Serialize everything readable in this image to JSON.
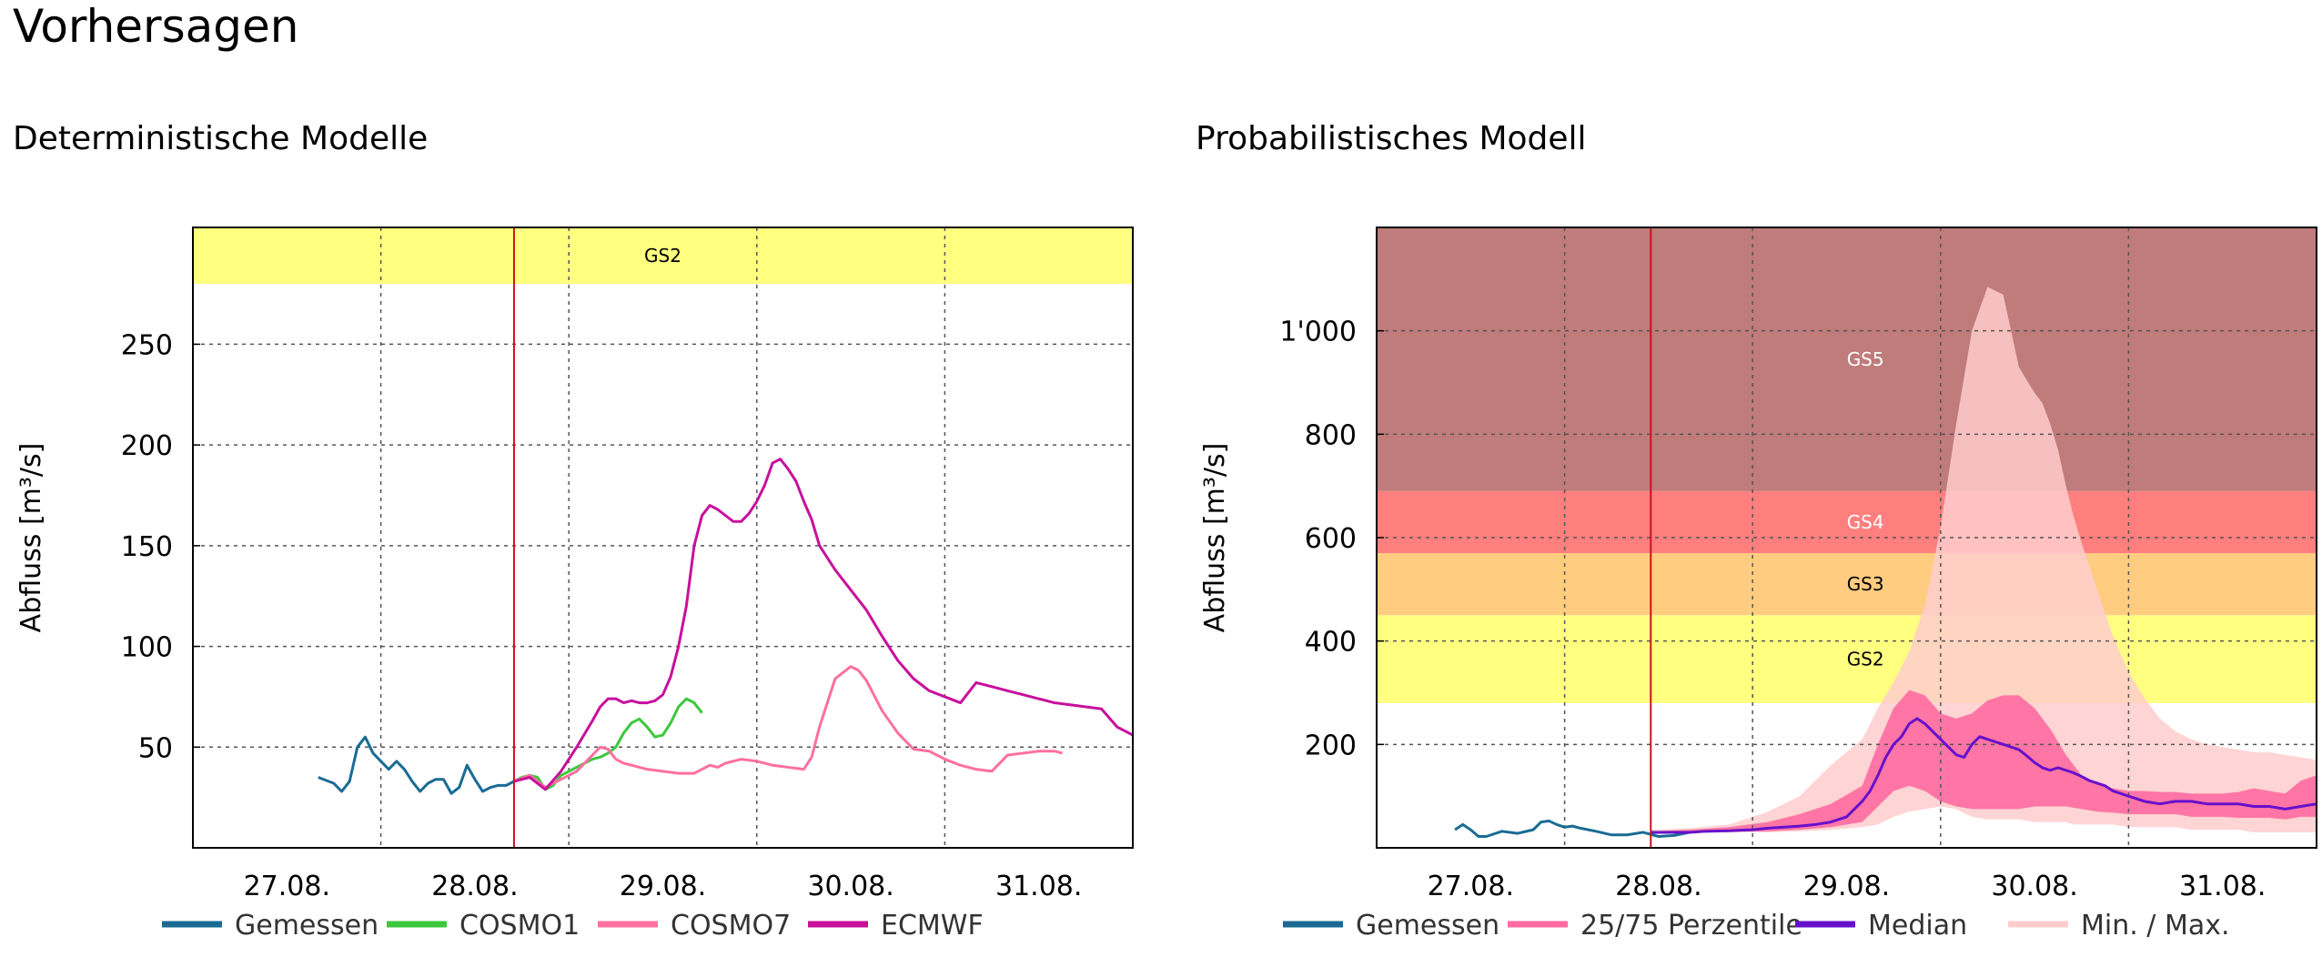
{
  "page": {
    "title": "Vorhersagen"
  },
  "colors": {
    "gemessen": "#1a6b94",
    "cosmo1": "#3cc83c",
    "cosmo7": "#ff6fa0",
    "ecmwf": "#c8109c",
    "vline": "#d0101c",
    "gs2": "#ffff80",
    "gs3": "#ffcc80",
    "gs4": "#ff7f7f",
    "gs5": "#c07b7b",
    "perzentile": "#ff6aa0",
    "median": "#6610cc",
    "minmax": "#ffcccc"
  },
  "chart_data": [
    {
      "type": "line",
      "title": "Deterministische Modelle",
      "ylabel": "Abfluss [m³/s]",
      "x_ticks": [
        "27.08.",
        "28.08.",
        "29.08.",
        "30.08.",
        "31.08."
      ],
      "xlim": [
        0,
        120
      ],
      "ylim": [
        0,
        308
      ],
      "y_ticks": [
        50,
        100,
        150,
        200,
        250
      ],
      "y_tick_labels": [
        "50",
        "100",
        "150",
        "200",
        "250"
      ],
      "grid": true,
      "legend_position": "bottom",
      "forecast_start_hour": 41,
      "bands": [
        {
          "label": "GS2",
          "from": 280,
          "to": 308,
          "color": "#ffff80"
        }
      ],
      "series": [
        {
          "name": "Gemessen",
          "color": "#1a6b94",
          "x": [
            16,
            18,
            19,
            20,
            21,
            22,
            23,
            24,
            25,
            26,
            27,
            28,
            29,
            30,
            31,
            32,
            33,
            34,
            35,
            36,
            37,
            38,
            39,
            40,
            41
          ],
          "y": [
            35,
            32,
            28,
            33,
            50,
            55,
            47,
            43,
            39,
            43,
            39,
            33,
            28,
            32,
            34,
            34,
            27,
            30,
            41,
            34,
            28,
            30,
            31,
            31,
            33
          ]
        },
        {
          "name": "COSMO1",
          "color": "#3cc83c",
          "x": [
            41,
            42,
            43,
            44,
            45,
            46,
            47,
            48,
            49,
            50,
            51,
            52,
            53,
            54,
            55,
            56,
            57,
            58,
            59,
            60,
            61,
            62,
            63,
            64,
            65,
            66,
            67,
            68
          ],
          "y": [
            33,
            35,
            36,
            35,
            29,
            31,
            36,
            38,
            40,
            42,
            44,
            45,
            47,
            50,
            57,
            62,
            64,
            60,
            55,
            56,
            62,
            70,
            74,
            72,
            67,
            null,
            null,
            null
          ]
        },
        {
          "name": "COSMO7",
          "color": "#ff6fa0",
          "x": [
            41,
            43,
            45,
            47,
            49,
            51,
            52,
            53,
            54,
            55,
            56,
            57,
            58,
            60,
            62,
            64,
            66,
            67,
            68,
            70,
            72,
            74,
            76,
            78,
            79,
            80,
            82,
            83,
            84,
            85,
            86,
            88,
            90,
            92,
            94,
            96,
            98,
            100,
            102,
            104,
            106,
            108,
            110,
            111
          ],
          "y": [
            33,
            36,
            30,
            34,
            38,
            46,
            50,
            49,
            44,
            42,
            41,
            40,
            39,
            38,
            37,
            37,
            41,
            40,
            42,
            44,
            43,
            41,
            40,
            39,
            45,
            60,
            84,
            87,
            90,
            88,
            83,
            68,
            57,
            49,
            48,
            44,
            41,
            39,
            38,
            46,
            47,
            48,
            48,
            47
          ]
        },
        {
          "name": "ECMWF",
          "color": "#c8109c",
          "x": [
            41,
            43,
            45,
            47,
            49,
            51,
            52,
            53,
            54,
            55,
            56,
            57,
            58,
            59,
            60,
            61,
            62,
            63,
            64,
            65,
            66,
            67,
            68,
            69,
            70,
            71,
            72,
            73,
            74,
            75,
            76,
            77,
            78,
            79,
            80,
            82,
            84,
            86,
            88,
            90,
            92,
            94,
            96,
            98,
            100,
            102,
            104,
            106,
            107,
            108,
            110,
            112,
            114,
            116,
            118,
            119,
            120
          ],
          "y": [
            33,
            35,
            29,
            38,
            50,
            63,
            70,
            74,
            74,
            72,
            73,
            72,
            72,
            73,
            76,
            85,
            100,
            120,
            150,
            165,
            170,
            168,
            165,
            162,
            162,
            166,
            172,
            180,
            191,
            193,
            188,
            182,
            172,
            163,
            150,
            138,
            128,
            118,
            105,
            93,
            84,
            78,
            75,
            72,
            82,
            80,
            78,
            76,
            75,
            74,
            72,
            71,
            70,
            69,
            60,
            58,
            56
          ]
        }
      ]
    },
    {
      "type": "area",
      "title": "Probabilistisches Modell",
      "ylabel": "Abfluss [m³/s]",
      "x_ticks": [
        "27.08.",
        "28.08.",
        "29.08.",
        "30.08.",
        "31.08."
      ],
      "xlim": [
        0,
        120
      ],
      "ylim": [
        0,
        1200
      ],
      "y_ticks": [
        200,
        400,
        600,
        800,
        1000
      ],
      "y_tick_labels": [
        "200",
        "400",
        "600",
        "800",
        "1'000"
      ],
      "grid": true,
      "legend_position": "bottom",
      "forecast_start_hour": 35,
      "bands": [
        {
          "label": "GS2",
          "from": 280,
          "to": 450,
          "color": "#ffff80"
        },
        {
          "label": "GS3",
          "from": 450,
          "to": 570,
          "color": "#ffcc80"
        },
        {
          "label": "GS4",
          "from": 570,
          "to": 690,
          "color": "#ff7f7f"
        },
        {
          "label": "GS5",
          "from": 690,
          "to": 1200,
          "color": "#c07b7b"
        }
      ],
      "gemessen": {
        "name": "Gemessen",
        "color": "#1a6b94",
        "x": [
          10,
          11,
          12,
          13,
          14,
          16,
          18,
          20,
          21,
          22,
          23,
          24,
          25,
          26,
          28,
          30,
          32,
          34,
          36,
          38,
          40
        ],
        "y": [
          35,
          45,
          35,
          22,
          22,
          32,
          28,
          35,
          50,
          52,
          45,
          40,
          42,
          38,
          32,
          25,
          25,
          30,
          22,
          24,
          30
        ]
      },
      "minmax": {
        "name": "Min. / Max.",
        "color": "#ffcccc",
        "x": [
          35,
          40,
          45,
          50,
          54,
          58,
          62,
          64,
          66,
          68,
          70,
          72,
          74,
          76,
          78,
          80,
          82,
          84,
          85,
          86,
          87,
          88,
          89,
          90,
          92,
          94,
          96,
          98,
          100,
          102,
          104,
          106,
          108,
          110,
          112,
          114,
          116,
          118,
          120
        ],
        "low": [
          30,
          30,
          30,
          30,
          32,
          35,
          40,
          45,
          60,
          70,
          75,
          80,
          75,
          60,
          55,
          55,
          55,
          50,
          50,
          50,
          50,
          50,
          45,
          45,
          45,
          45,
          40,
          40,
          40,
          40,
          35,
          35,
          35,
          35,
          30,
          30,
          30,
          30,
          30
        ],
        "high": [
          35,
          38,
          45,
          70,
          100,
          160,
          210,
          270,
          320,
          380,
          470,
          620,
          820,
          1000,
          1085,
          1070,
          930,
          880,
          860,
          820,
          770,
          700,
          640,
          590,
          500,
          410,
          340,
          290,
          250,
          225,
          210,
          200,
          195,
          190,
          185,
          185,
          180,
          175,
          170
        ]
      },
      "perzentile": {
        "name": "25/75 Perzentile",
        "color": "#ff6aa0",
        "x": [
          35,
          40,
          45,
          50,
          54,
          58,
          62,
          64,
          66,
          68,
          70,
          72,
          74,
          76,
          78,
          80,
          82,
          84,
          86,
          88,
          90,
          92,
          94,
          96,
          98,
          100,
          102,
          104,
          106,
          108,
          110,
          112,
          114,
          116,
          118,
          120
        ],
        "low": [
          30,
          30,
          32,
          32,
          35,
          40,
          50,
          80,
          110,
          120,
          110,
          90,
          80,
          75,
          75,
          75,
          75,
          80,
          80,
          80,
          75,
          70,
          68,
          65,
          65,
          65,
          65,
          60,
          60,
          60,
          58,
          58,
          58,
          55,
          60,
          60
        ],
        "high": [
          32,
          35,
          40,
          50,
          65,
          85,
          120,
          200,
          270,
          305,
          295,
          260,
          250,
          260,
          285,
          295,
          295,
          270,
          230,
          180,
          140,
          125,
          115,
          110,
          110,
          108,
          108,
          105,
          105,
          105,
          108,
          115,
          110,
          105,
          130,
          140
        ]
      },
      "median": {
        "name": "Median",
        "color": "#6610cc",
        "x": [
          35,
          38,
          40,
          42,
          45,
          48,
          50,
          52,
          54,
          56,
          58,
          60,
          62,
          63,
          64,
          65,
          66,
          67,
          68,
          69,
          70,
          71,
          72,
          73,
          74,
          75,
          76,
          77,
          78,
          79,
          80,
          81,
          82,
          83,
          84,
          85,
          86,
          87,
          88,
          89,
          90,
          91,
          92,
          93,
          94,
          96,
          98,
          100,
          102,
          104,
          106,
          108,
          110,
          112,
          114,
          116,
          118,
          120
        ],
        "y": [
          30,
          30,
          30,
          32,
          33,
          35,
          38,
          40,
          42,
          45,
          50,
          60,
          90,
          110,
          140,
          175,
          200,
          215,
          240,
          250,
          240,
          225,
          210,
          195,
          180,
          175,
          200,
          215,
          210,
          205,
          200,
          195,
          190,
          178,
          165,
          155,
          150,
          155,
          150,
          145,
          138,
          130,
          125,
          120,
          110,
          100,
          90,
          85,
          90,
          90,
          85,
          85,
          85,
          80,
          80,
          75,
          80,
          85
        ]
      },
      "legend": [
        "Gemessen",
        "25/75 Perzentile",
        "Median",
        "Min. / Max."
      ]
    }
  ]
}
